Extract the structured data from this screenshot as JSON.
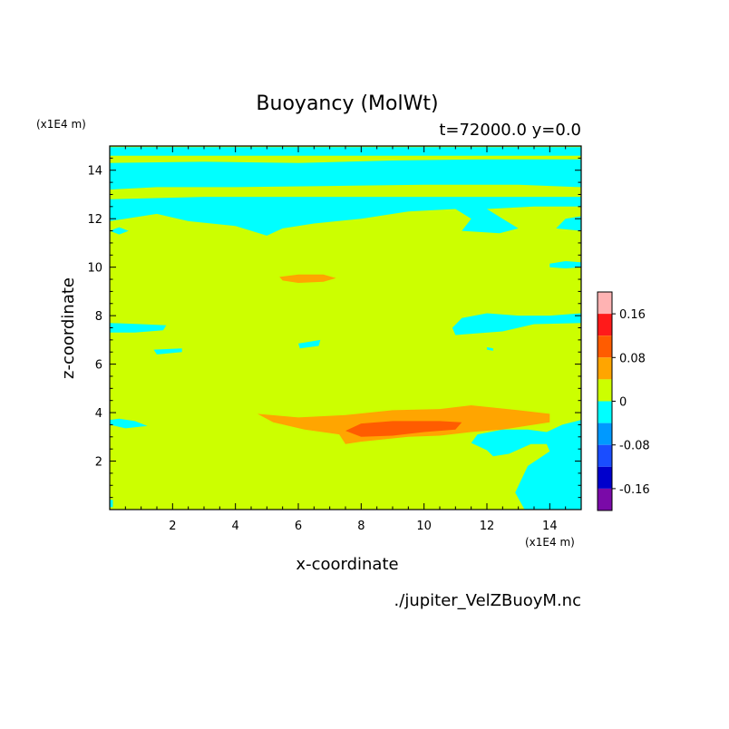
{
  "figure": {
    "title": "Buoyancy (MolWt)",
    "subtitle": "t=72000.0 y=0.0",
    "filename": "./jupiter_VelZBuoyM.nc"
  },
  "chart_data": {
    "type": "heatmap",
    "title": "Buoyancy (MolWt)",
    "subtitle": "t=72000.0 y=0.0",
    "xlabel": "x-coordinate",
    "ylabel": "z-coordinate",
    "x_unit": "(x1E4 m)",
    "y_unit": "(x1E4 m)",
    "xlim": [
      0,
      15
    ],
    "ylim": [
      0,
      15
    ],
    "xticks": [
      2,
      4,
      6,
      8,
      10,
      12,
      14
    ],
    "yticks": [
      2,
      4,
      6,
      8,
      10,
      12,
      14
    ],
    "colorbar": {
      "tick_values": [
        0.16,
        0.08,
        0,
        -0.08,
        -0.16
      ],
      "tick_labels": [
        "0.16",
        "0.08",
        "0",
        "-0.08",
        "-0.16"
      ],
      "levels": [
        {
          "min": 0.16,
          "max": 0.2,
          "color": "#ffb3b3"
        },
        {
          "min": 0.12,
          "max": 0.16,
          "color": "#ff1a1a"
        },
        {
          "min": 0.08,
          "max": 0.12,
          "color": "#ff5c00"
        },
        {
          "min": 0.04,
          "max": 0.08,
          "color": "#ffa500"
        },
        {
          "min": 0.0,
          "max": 0.04,
          "color": "#ccff00"
        },
        {
          "min": -0.04,
          "max": 0.0,
          "color": "#00ffff"
        },
        {
          "min": -0.08,
          "max": -0.04,
          "color": "#0099ff"
        },
        {
          "min": -0.12,
          "max": -0.08,
          "color": "#1a4dff"
        },
        {
          "min": -0.16,
          "max": -0.12,
          "color": "#0000cc"
        },
        {
          "min": -0.2,
          "max": -0.16,
          "color": "#7a0aa8"
        }
      ]
    },
    "background_color": "#ccff00",
    "regions": [
      {
        "level": -0.02,
        "polygon": [
          [
            0,
            14.6
          ],
          [
            15,
            14.6
          ],
          [
            15,
            14.95
          ],
          [
            0,
            14.95
          ]
        ]
      },
      {
        "level": -0.02,
        "polygon": [
          [
            0,
            13.2
          ],
          [
            1.5,
            13.3
          ],
          [
            4,
            13.3
          ],
          [
            7,
            13.35
          ],
          [
            10,
            13.4
          ],
          [
            13,
            13.4
          ],
          [
            15,
            13.3
          ],
          [
            15,
            14.45
          ],
          [
            12,
            14.45
          ],
          [
            9,
            14.4
          ],
          [
            6,
            14.3
          ],
          [
            3,
            14.35
          ],
          [
            0,
            14.3
          ]
        ]
      },
      {
        "level": -0.02,
        "polygon": [
          [
            0,
            11.9
          ],
          [
            1.5,
            12.2
          ],
          [
            2.5,
            11.9
          ],
          [
            4,
            11.7
          ],
          [
            5,
            11.3
          ],
          [
            5.5,
            11.6
          ],
          [
            6.5,
            11.8
          ],
          [
            8,
            12.0
          ],
          [
            9.5,
            12.3
          ],
          [
            11,
            12.4
          ],
          [
            11.5,
            12.0
          ],
          [
            11.2,
            11.5
          ],
          [
            12.4,
            11.4
          ],
          [
            13,
            11.6
          ],
          [
            12.5,
            12.0
          ],
          [
            12.0,
            12.4
          ],
          [
            13.5,
            12.5
          ],
          [
            15,
            12.5
          ],
          [
            15,
            12.9
          ],
          [
            12,
            12.9
          ],
          [
            9,
            12.9
          ],
          [
            6,
            12.9
          ],
          [
            3,
            12.9
          ],
          [
            0,
            12.8
          ]
        ]
      },
      {
        "level": -0.02,
        "polygon": [
          [
            0,
            11.5
          ],
          [
            0.3,
            11.35
          ],
          [
            0.6,
            11.5
          ],
          [
            0.3,
            11.65
          ]
        ]
      },
      {
        "level": -0.02,
        "polygon": [
          [
            14.2,
            11.6
          ],
          [
            15,
            11.5
          ],
          [
            15,
            12.1
          ],
          [
            14.5,
            12.0
          ]
        ]
      },
      {
        "level": -0.02,
        "polygon": [
          [
            14.0,
            10.0
          ],
          [
            14.5,
            9.95
          ],
          [
            15,
            10.0
          ],
          [
            15,
            10.2
          ],
          [
            14.5,
            10.25
          ],
          [
            14.0,
            10.15
          ]
        ]
      },
      {
        "level": -0.02,
        "polygon": [
          [
            0,
            7.7
          ],
          [
            1.0,
            7.65
          ],
          [
            1.8,
            7.6
          ],
          [
            1.7,
            7.4
          ],
          [
            0.8,
            7.3
          ],
          [
            0,
            7.3
          ]
        ]
      },
      {
        "level": -0.02,
        "polygon": [
          [
            1.4,
            6.6
          ],
          [
            2.3,
            6.65
          ],
          [
            2.3,
            6.5
          ],
          [
            1.5,
            6.4
          ]
        ]
      },
      {
        "level": -0.02,
        "polygon": [
          [
            11,
            7.2
          ],
          [
            12.5,
            7.35
          ],
          [
            13.5,
            7.65
          ],
          [
            15,
            7.7
          ],
          [
            15,
            8.1
          ],
          [
            14,
            8.0
          ],
          [
            13,
            8.0
          ],
          [
            12,
            8.1
          ],
          [
            11.2,
            7.9
          ],
          [
            10.9,
            7.5
          ]
        ]
      },
      {
        "level": -0.02,
        "polygon": [
          [
            12.0,
            6.7
          ],
          [
            12.2,
            6.65
          ],
          [
            12.2,
            6.55
          ],
          [
            12.0,
            6.6
          ]
        ]
      },
      {
        "level": -0.02,
        "polygon": [
          [
            6.0,
            6.85
          ],
          [
            6.7,
            7.0
          ],
          [
            6.65,
            6.75
          ],
          [
            6.05,
            6.65
          ]
        ]
      },
      {
        "level": -0.02,
        "polygon": [
          [
            0,
            3.5
          ],
          [
            0.5,
            3.35
          ],
          [
            1.2,
            3.45
          ],
          [
            0.8,
            3.65
          ],
          [
            0.3,
            3.75
          ],
          [
            0,
            3.7
          ]
        ]
      },
      {
        "level": -0.02,
        "polygon": [
          [
            11.7,
            3.1
          ],
          [
            12.5,
            3.3
          ],
          [
            13.3,
            3.3
          ],
          [
            13.9,
            3.2
          ],
          [
            14.4,
            3.5
          ],
          [
            15,
            3.7
          ],
          [
            15,
            0
          ],
          [
            13.2,
            0
          ],
          [
            12.9,
            0.7
          ],
          [
            13.3,
            1.8
          ],
          [
            14.0,
            2.4
          ],
          [
            13.9,
            2.7
          ],
          [
            13.4,
            2.7
          ],
          [
            12.7,
            2.3
          ],
          [
            12.2,
            2.2
          ],
          [
            12.0,
            2.45
          ],
          [
            11.5,
            2.75
          ]
        ]
      },
      {
        "level": -0.02,
        "polygon": [
          [
            0,
            0.1
          ],
          [
            0.1,
            0.1
          ],
          [
            0.1,
            0.4
          ],
          [
            0,
            0.4
          ]
        ]
      },
      {
        "level": 0.06,
        "polygon": [
          [
            4.7,
            3.95
          ],
          [
            6,
            3.8
          ],
          [
            7.5,
            3.9
          ],
          [
            9,
            4.1
          ],
          [
            10.5,
            4.15
          ],
          [
            11.5,
            4.3
          ],
          [
            13.0,
            4.1
          ],
          [
            14.0,
            3.95
          ],
          [
            14.0,
            3.6
          ],
          [
            12.5,
            3.3
          ],
          [
            11.5,
            3.2
          ],
          [
            10.5,
            3.05
          ],
          [
            9.5,
            3.0
          ],
          [
            8.0,
            2.8
          ],
          [
            7.5,
            2.7
          ],
          [
            7.3,
            3.1
          ],
          [
            6.2,
            3.3
          ],
          [
            5.2,
            3.6
          ]
        ]
      },
      {
        "level": 0.1,
        "polygon": [
          [
            7.5,
            3.25
          ],
          [
            8,
            3.55
          ],
          [
            9,
            3.65
          ],
          [
            10.5,
            3.65
          ],
          [
            11.2,
            3.6
          ],
          [
            11.0,
            3.3
          ],
          [
            10,
            3.2
          ],
          [
            9,
            3.05
          ],
          [
            8,
            3.0
          ]
        ]
      },
      {
        "level": 0.06,
        "polygon": [
          [
            5.4,
            9.6
          ],
          [
            6,
            9.7
          ],
          [
            6.8,
            9.7
          ],
          [
            7.2,
            9.55
          ],
          [
            6.8,
            9.4
          ],
          [
            6,
            9.35
          ],
          [
            5.5,
            9.45
          ]
        ]
      }
    ]
  }
}
